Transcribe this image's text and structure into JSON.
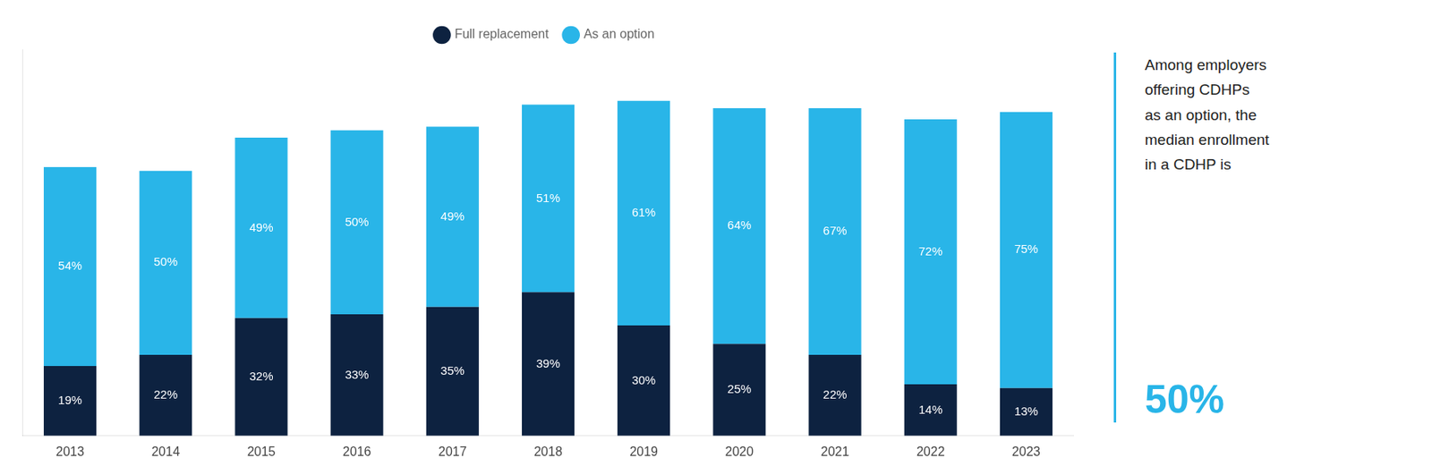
{
  "chart_data": {
    "type": "bar",
    "stacked": true,
    "categories": [
      "2013",
      "2014",
      "2015",
      "2016",
      "2017",
      "2018",
      "2019",
      "2020",
      "2021",
      "2022",
      "2023"
    ],
    "series": [
      {
        "name": "Full replacement",
        "color": "#0d2240",
        "values": [
          19,
          22,
          32,
          33,
          35,
          39,
          30,
          25,
          22,
          14,
          13
        ],
        "value_labels": [
          "19%",
          "22%",
          "32%",
          "33%",
          "35%",
          "39%",
          "30%",
          "25%",
          "22%",
          "14%",
          "13%"
        ]
      },
      {
        "name": "As an option",
        "color": "#29b5e8",
        "values": [
          54,
          50,
          49,
          50,
          49,
          51,
          61,
          64,
          67,
          72,
          75
        ],
        "value_labels": [
          "54%",
          "50%",
          "49%",
          "50%",
          "49%",
          "51%",
          "61%",
          "64%",
          "67%",
          "72%",
          "75%"
        ]
      }
    ],
    "ylim": [
      0,
      105
    ],
    "tick_labels": "x",
    "grid": false,
    "legend": "top",
    "data_labels": true,
    "annotations": [
      {
        "text": "Among employers\noffering CDHPs\nas an option, the\nmedian enrollment\nin a CDHP is",
        "color": "#222222"
      },
      {
        "text": "50%",
        "color": "#29b5e8"
      }
    ]
  }
}
